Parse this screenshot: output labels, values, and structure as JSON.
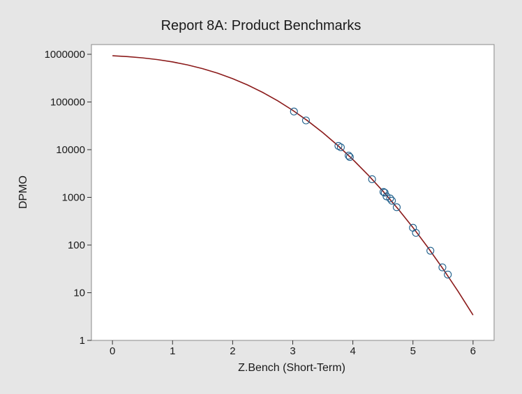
{
  "chart_data": {
    "type": "scatter",
    "title": "Report 8A: Product Benchmarks",
    "xlabel": "Z.Bench (Short-Term)",
    "ylabel": "DPMO",
    "x_scale": "linear",
    "y_scale": "log",
    "xlim": [
      -0.35,
      6.35
    ],
    "ylim": [
      1,
      1600000
    ],
    "x_ticks": [
      0,
      1,
      2,
      3,
      4,
      5,
      6
    ],
    "y_ticks": [
      1,
      10,
      100,
      1000,
      10000,
      100000,
      1000000
    ],
    "y_tick_labels": [
      "1",
      "10",
      "100",
      "1000",
      "10000",
      "100000",
      "1000000"
    ],
    "grid": false,
    "colors": {
      "background": "#e6e6e6",
      "plot_area": "#ffffff",
      "curve": "#8b1a1a",
      "markers": "#1f5f8b"
    },
    "series": [
      {
        "kind": "line",
        "x": [
          0,
          0.25,
          0.5,
          0.75,
          1,
          1.25,
          1.5,
          1.75,
          2,
          2.25,
          2.5,
          2.75,
          3,
          3.25,
          3.5,
          3.75,
          4,
          4.25,
          4.5,
          4.75,
          5,
          5.25,
          5.5,
          5.75,
          6
        ],
        "y": [
          933193,
          894350,
          841345,
          773373,
          691462,
          598706,
          500000,
          401294,
          308538,
          226627,
          158655,
          105650,
          66807,
          40059,
          22750,
          12224,
          6210,
          2980,
          1350,
          577,
          233,
          88.5,
          31.7,
          10.7,
          3.4
        ]
      },
      {
        "kind": "points",
        "x": [
          3.02,
          3.22,
          3.76,
          3.8,
          3.93,
          3.95,
          4.32,
          4.51,
          4.53,
          4.56,
          4.62,
          4.65,
          4.73,
          5.0,
          5.05,
          5.29,
          5.49,
          5.58
        ],
        "y": [
          63000,
          41000,
          12000,
          11200,
          7500,
          7000,
          2400,
          1300,
          1250,
          1050,
          950,
          850,
          620,
          230,
          180,
          76,
          34,
          24
        ]
      }
    ]
  }
}
